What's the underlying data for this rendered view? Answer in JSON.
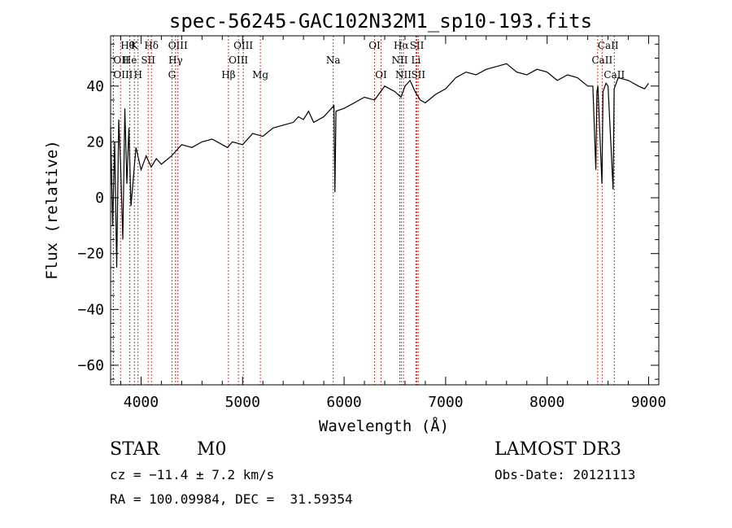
{
  "chart_data": {
    "type": "line",
    "title": "spec-56245-GAC102N32M1_sp10-193.fits",
    "xlabel": "Wavelength (Å)",
    "ylabel": "Flux (relative)",
    "xlim": [
      3700,
      9100
    ],
    "ylim": [
      -67,
      58
    ],
    "xticks": [
      4000,
      5000,
      6000,
      7000,
      8000,
      9000
    ],
    "yticks": [
      -60,
      -40,
      -20,
      0,
      20,
      40
    ],
    "series": [
      {
        "name": "flux",
        "x": [
          3700,
          3720,
          3740,
          3760,
          3780,
          3800,
          3820,
          3840,
          3860,
          3880,
          3900,
          3950,
          4000,
          4050,
          4100,
          4150,
          4200,
          4300,
          4400,
          4500,
          4600,
          4700,
          4800,
          4850,
          4900,
          5000,
          5100,
          5200,
          5300,
          5400,
          5500,
          5550,
          5600,
          5650,
          5700,
          5800,
          5900,
          5910,
          5920,
          6000,
          6100,
          6200,
          6300,
          6400,
          6500,
          6560,
          6600,
          6650,
          6700,
          6750,
          6800,
          6900,
          7000,
          7100,
          7200,
          7300,
          7400,
          7500,
          7600,
          7700,
          7800,
          7900,
          8000,
          8100,
          8200,
          8300,
          8400,
          8450,
          8480,
          8490,
          8500,
          8540,
          8550,
          8580,
          8600,
          8650,
          8660,
          8700,
          8800,
          8900,
          8960,
          9000
        ],
        "y": [
          25,
          -10,
          20,
          -25,
          28,
          10,
          -15,
          32,
          5,
          25,
          -3,
          18,
          10,
          15,
          11,
          14,
          12,
          15,
          19,
          18,
          20,
          21,
          19,
          18,
          20,
          19,
          23,
          22,
          25,
          26,
          27,
          29,
          28,
          31,
          27,
          29,
          33,
          2,
          31,
          32,
          34,
          36,
          35,
          40,
          38,
          36,
          40,
          42,
          38,
          35,
          34,
          37,
          39,
          43,
          45,
          44,
          46,
          47,
          48,
          45,
          44,
          46,
          45,
          42,
          44,
          43,
          40,
          40,
          10,
          38,
          40,
          5,
          38,
          41,
          40,
          3,
          39,
          43,
          42,
          40,
          39,
          41
        ]
      }
    ],
    "lines": [
      {
        "label": "Hθ",
        "x": 3798,
        "row": 0,
        "anchor": "left"
      },
      {
        "label": "K",
        "x": 3934,
        "row": 0,
        "anchor": "middle"
      },
      {
        "label": "Hδ",
        "x": 4102,
        "row": 0,
        "anchor": "middle"
      },
      {
        "label": "OIII",
        "x": 4363,
        "row": 0,
        "anchor": "middle"
      },
      {
        "label": "OIII",
        "x": 5007,
        "row": 0,
        "anchor": "middle"
      },
      {
        "label": "OI",
        "x": 6300,
        "row": 0,
        "anchor": "middle"
      },
      {
        "label": "Hα",
        "x": 6563,
        "row": 0,
        "anchor": "middle"
      },
      {
        "label": "SII",
        "x": 6717,
        "row": 0,
        "anchor": "middle"
      },
      {
        "label": "CaII",
        "x": 8498,
        "row": 0,
        "anchor": "left"
      },
      {
        "label": "OII",
        "x": 3727,
        "row": 1,
        "anchor": "left"
      },
      {
        "label": "He",
        "x": 3889,
        "row": 1,
        "anchor": "middle"
      },
      {
        "label": "SII",
        "x": 4070,
        "row": 1,
        "anchor": "middle"
      },
      {
        "label": "Hγ",
        "x": 4340,
        "row": 1,
        "anchor": "middle"
      },
      {
        "label": "OIII",
        "x": 4959,
        "row": 1,
        "anchor": "middle"
      },
      {
        "label": "Na",
        "x": 5893,
        "row": 1,
        "anchor": "middle"
      },
      {
        "label": "NII",
        "x": 6548,
        "row": 1,
        "anchor": "middle"
      },
      {
        "label": "Li",
        "x": 6708,
        "row": 1,
        "anchor": "middle"
      },
      {
        "label": "CaII",
        "x": 8542,
        "row": 1,
        "anchor": "middle"
      },
      {
        "label": "OIII",
        "x": 3727,
        "row": 2,
        "anchor": "left"
      },
      {
        "label": "H",
        "x": 3970,
        "row": 2,
        "anchor": "middle"
      },
      {
        "label": "G",
        "x": 4304,
        "row": 2,
        "anchor": "middle"
      },
      {
        "label": "Hβ",
        "x": 4861,
        "row": 2,
        "anchor": "middle"
      },
      {
        "label": "Mg",
        "x": 5175,
        "row": 2,
        "anchor": "middle"
      },
      {
        "label": "OI",
        "x": 6364,
        "row": 2,
        "anchor": "middle"
      },
      {
        "label": "NII",
        "x": 6584,
        "row": 2,
        "anchor": "middle"
      },
      {
        "label": "SII",
        "x": 6731,
        "row": 2,
        "anchor": "middle"
      },
      {
        "label": "CaII",
        "x": 8662,
        "row": 2,
        "anchor": "middle"
      }
    ],
    "line_color": "#c0392b",
    "series_color": "#000000",
    "grid": false
  },
  "info": {
    "object_class": "STAR",
    "subclass": "M0",
    "survey": "LAMOST DR3",
    "cz": "cz = −11.4 ± 7.2 km/s",
    "obs_date": "Obs-Date: 20121113",
    "coords": "RA = 100.09984, DEC =  31.59354"
  }
}
